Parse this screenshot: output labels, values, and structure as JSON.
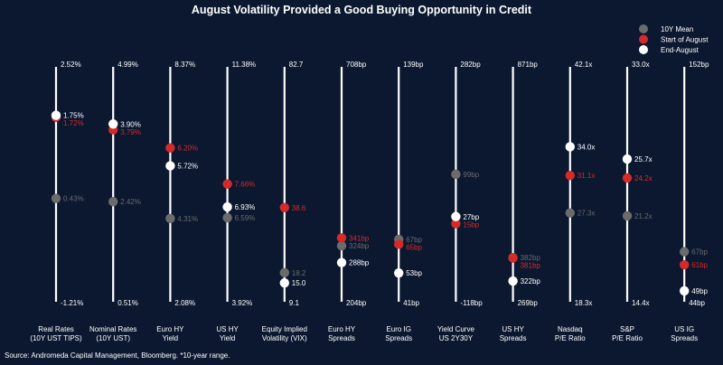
{
  "colors": {
    "background": "#0b1830",
    "mean": "#6b6b6b",
    "start": "#d42a2a",
    "end": "#ffffff",
    "axis": "#ffffff"
  },
  "chart_data": {
    "type": "range-dot",
    "title": "August Volatility Provided a Good Buying Opportunity in Credit",
    "source": "Source: Andromeda Capital Management, Bloomberg. *10-year range.",
    "legend": [
      {
        "key": "mean",
        "label": "10Y Mean"
      },
      {
        "key": "start",
        "label": "Start of August"
      },
      {
        "key": "end",
        "label": "End-August"
      }
    ],
    "categories": [
      {
        "name": [
          "Real Rates",
          "(10Y UST TIPS)"
        ],
        "max": 2.52,
        "min": -1.21,
        "max_label": "2.52%",
        "min_label": "-1.21%",
        "mean": 0.43,
        "mean_label": "0.43%",
        "start": 1.72,
        "start_label": "1.72%",
        "end": 1.75,
        "end_label": "1.75%"
      },
      {
        "name": [
          "Nominal Rates",
          "(10Y UST)"
        ],
        "max": 4.99,
        "min": 0.51,
        "max_label": "4.99%",
        "min_label": "0.51%",
        "mean": 2.42,
        "mean_label": "2.42%",
        "start": 3.79,
        "start_label": "3.79%",
        "end": 3.9,
        "end_label": "3.90%"
      },
      {
        "name": [
          "Euro HY",
          "Yield"
        ],
        "max": 8.37,
        "min": 2.08,
        "max_label": "8.37%",
        "min_label": "2.08%",
        "mean": 4.31,
        "mean_label": "4.31%",
        "start": 6.2,
        "start_label": "6.20%",
        "end": 5.72,
        "end_label": "5.72%"
      },
      {
        "name": [
          "US HY",
          "Yield"
        ],
        "max": 11.38,
        "min": 3.92,
        "max_label": "11.38%",
        "min_label": "3.92%",
        "mean": 6.59,
        "mean_label": "6.59%",
        "start": 7.66,
        "start_label": "7.66%",
        "end": 6.93,
        "end_label": "6.93%"
      },
      {
        "name": [
          "Equity Implied",
          "Volatility (VIX)"
        ],
        "max": 82.7,
        "min": 9.1,
        "max_label": "82.7",
        "min_label": "9.1",
        "mean": 18.2,
        "mean_label": "18.2",
        "start": 38.6,
        "start_label": "38.6",
        "end": 15.0,
        "end_label": "15.0"
      },
      {
        "name": [
          "Euro HY",
          "Spreads"
        ],
        "max": 708,
        "min": 204,
        "max_label": "708bp",
        "min_label": "204bp",
        "mean": 324,
        "mean_label": "324bp",
        "start": 341,
        "start_label": "341bp",
        "end": 288,
        "end_label": "288bp"
      },
      {
        "name": [
          "Euro IG",
          "Spreads"
        ],
        "max": 139,
        "min": 41,
        "max_label": "139bp",
        "min_label": "41bp",
        "mean": 67,
        "mean_label": "67bp",
        "start": 65,
        "start_label": "65bp",
        "end": 53,
        "end_label": "53bp"
      },
      {
        "name": [
          "Yield Curve",
          "US 2Y30Y"
        ],
        "max": 282,
        "min": -118,
        "max_label": "282bp",
        "min_label": "-118bp",
        "mean": 99,
        "mean_label": "99bp",
        "start": 15,
        "start_label": "15bp",
        "end": 27,
        "end_label": "27bp"
      },
      {
        "name": [
          "US HY",
          "Spreads"
        ],
        "max": 871,
        "min": 269,
        "max_label": "871bp",
        "min_label": "269bp",
        "mean": 382,
        "mean_label": "382bp",
        "start": 381,
        "start_label": "381bp",
        "end": 322,
        "end_label": "322bp"
      },
      {
        "name": [
          "Nasdaq",
          "P/E Ratio"
        ],
        "max": 42.1,
        "min": 18.3,
        "max_label": "42.1x",
        "min_label": "18.3x",
        "mean": 27.3,
        "mean_label": "27.3x",
        "start": 31.1,
        "start_label": "31.1x",
        "end": 34.0,
        "end_label": "34.0x"
      },
      {
        "name": [
          "S&P",
          "P/E Ratio"
        ],
        "max": 33.0,
        "min": 14.4,
        "max_label": "33.0x",
        "min_label": "14.4x",
        "mean": 21.2,
        "mean_label": "21.2x",
        "start": 24.2,
        "start_label": "24.2x",
        "end": 25.7,
        "end_label": "25.7x"
      },
      {
        "name": [
          "US IG",
          "Spreads"
        ],
        "max": 152,
        "min": 44,
        "max_label": "152bp",
        "min_label": "44bp",
        "mean": 67,
        "mean_label": "67bp",
        "start": 61,
        "start_label": "61bp",
        "end": 49,
        "end_label": "49bp"
      }
    ]
  }
}
